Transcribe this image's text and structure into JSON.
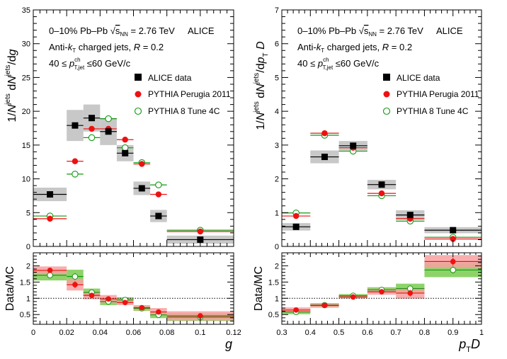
{
  "chart_data": [
    {
      "id": "left",
      "type": "scatter",
      "xlabel": "g",
      "ylabel_top": "1/N^jets dN^jets/dg",
      "ylabel_bottom": "Data/MC",
      "xlim": [
        0,
        0.12
      ],
      "xticks": [
        0,
        0.02,
        0.04,
        0.06,
        0.08,
        0.1,
        0.12
      ],
      "xtick_labels": [
        "0",
        "0.02",
        "0.04",
        "0.06",
        "0.08",
        "0.1",
        "0.12"
      ],
      "top_ylim": [
        0,
        35
      ],
      "top_yticks": [
        0,
        5,
        10,
        15,
        20,
        25,
        30,
        35
      ],
      "top_ytick_labels": [
        "0",
        "5",
        "10",
        "15",
        "20",
        "25",
        "30",
        "35"
      ],
      "bottom_ylim": [
        0.2,
        2.4
      ],
      "bottom_yticks": [
        0.5,
        1,
        1.5,
        2
      ],
      "bottom_ytick_labels": [
        "0.5",
        "1",
        "1.5",
        "2"
      ],
      "annotations": [
        "0–10% Pb–Pb √s_NN = 2.76 TeV",
        "ALICE",
        "Anti-k_T charged jets, R = 0.2",
        "40 ≤ p_T,jet^ch ≤ 60 GeV/c"
      ],
      "bin_edges": [
        0,
        0.02,
        0.03,
        0.04,
        0.05,
        0.06,
        0.07,
        0.08,
        0.12
      ],
      "series": [
        {
          "name": "ALICE data",
          "x": [
            0.01,
            0.025,
            0.035,
            0.045,
            0.055,
            0.065,
            0.075,
            0.1
          ],
          "values": [
            7.7,
            17.9,
            19.0,
            17.0,
            13.8,
            8.6,
            4.5,
            1.0
          ],
          "sys": [
            1.0,
            2.3,
            2.0,
            2.0,
            1.2,
            1.0,
            0.9,
            0.6
          ]
        },
        {
          "name": "PYTHIA Perugia 2011",
          "x": [
            0.01,
            0.025,
            0.035,
            0.045,
            0.055,
            0.065,
            0.075,
            0.1
          ],
          "values": [
            4.1,
            12.6,
            17.4,
            17.4,
            15.8,
            12.2,
            7.7,
            2.2
          ]
        },
        {
          "name": "PYTHIA 8 Tune 4C",
          "x": [
            0.01,
            0.025,
            0.035,
            0.045,
            0.055,
            0.065,
            0.075,
            0.1
          ],
          "values": [
            4.5,
            10.7,
            16.1,
            18.9,
            14.6,
            12.4,
            9.1,
            2.4
          ]
        }
      ],
      "ratio": {
        "perugia": [
          1.86,
          1.42,
          1.09,
          0.98,
          0.87,
          0.71,
          0.58,
          0.46
        ],
        "perugia_err": [
          0.12,
          0.18,
          0.12,
          0.12,
          0.08,
          0.08,
          0.12,
          0.14
        ],
        "tune4c": [
          1.71,
          1.67,
          1.18,
          0.9,
          0.95,
          0.69,
          0.49,
          0.42
        ],
        "tune4c_err": [
          0.16,
          0.21,
          0.12,
          0.11,
          0.08,
          0.08,
          0.1,
          0.12
        ]
      }
    },
    {
      "id": "right",
      "type": "scatter",
      "xlabel": "p_T D",
      "ylabel_top": "1/N^jets dN^jets/dp_T D",
      "ylabel_bottom": "Data/MC",
      "xlim": [
        0.3,
        1
      ],
      "xticks": [
        0.3,
        0.4,
        0.5,
        0.6,
        0.7,
        0.8,
        0.9,
        1
      ],
      "xtick_labels": [
        "0.3",
        "0.4",
        "0.5",
        "0.6",
        "0.7",
        "0.8",
        "0.9",
        "1"
      ],
      "top_ylim": [
        0,
        7
      ],
      "top_yticks": [
        0,
        1,
        2,
        3,
        4,
        5,
        6,
        7
      ],
      "top_ytick_labels": [
        "0",
        "1",
        "2",
        "3",
        "4",
        "5",
        "6",
        "7"
      ],
      "bottom_ylim": [
        0.2,
        2.4
      ],
      "bottom_yticks": [
        0.5,
        1,
        1.5,
        2
      ],
      "bottom_ytick_labels": [
        "0.5",
        "1",
        "1.5",
        "2"
      ],
      "annotations": [
        "0–10% Pb–Pb √s_NN = 2.76 TeV",
        "ALICE",
        "Anti-k_T charged jets, R = 0.2",
        "40 ≤ p_T,jet^ch ≤ 60 GeV/c"
      ],
      "bin_edges": [
        0.3,
        0.4,
        0.5,
        0.6,
        0.7,
        0.8,
        1.0
      ],
      "series": [
        {
          "name": "ALICE data",
          "x": [
            0.35,
            0.45,
            0.55,
            0.65,
            0.75,
            0.9
          ],
          "values": [
            0.58,
            2.65,
            2.98,
            1.83,
            0.93,
            0.48
          ],
          "sys": [
            0.11,
            0.19,
            0.14,
            0.14,
            0.14,
            0.09
          ]
        },
        {
          "name": "PYTHIA Perugia 2011",
          "x": [
            0.35,
            0.45,
            0.55,
            0.65,
            0.75,
            0.9
          ],
          "values": [
            0.9,
            3.35,
            2.92,
            1.57,
            0.82,
            0.22
          ]
        },
        {
          "name": "PYTHIA 8 Tune 4C",
          "x": [
            0.35,
            0.45,
            0.55,
            0.65,
            0.75,
            0.9
          ],
          "values": [
            0.99,
            3.29,
            2.82,
            1.5,
            0.75,
            0.27
          ]
        }
      ],
      "ratio": {
        "perugia": [
          0.64,
          0.78,
          1.04,
          1.2,
          1.16,
          2.13
        ],
        "perugia_err": [
          0.08,
          0.07,
          0.05,
          0.09,
          0.17,
          0.2
        ],
        "tune4c": [
          0.58,
          0.79,
          1.08,
          1.26,
          1.3,
          1.87
        ],
        "tune4c_err": [
          0.07,
          0.06,
          0.05,
          0.08,
          0.15,
          0.22
        ]
      }
    }
  ],
  "legend": {
    "data": "ALICE data",
    "perugia": "PYTHIA Perugia 2011",
    "tune4c": "PYTHIA 8 Tune 4C"
  },
  "header": {
    "collision_prefix": "0–10% Pb–Pb",
    "energy": "= 2.76 TeV",
    "experiment": "ALICE",
    "algo": "Anti-",
    "algo_rest": "charged jets,",
    "radius": "R = 0.2",
    "pt_low": "40 ≤",
    "pt_high": "≤60 GeV/c"
  }
}
